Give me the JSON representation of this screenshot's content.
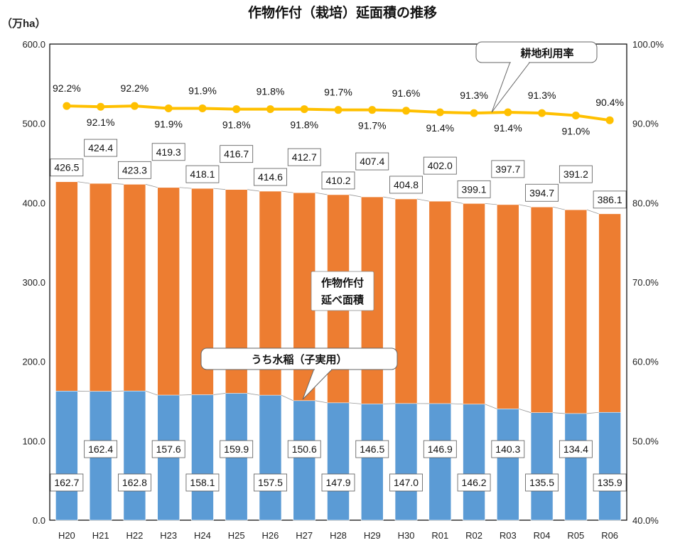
{
  "chart_data": {
    "type": "bar",
    "title": "作物作付（栽培）延面積の推移",
    "ylabel": "（万ha）",
    "ylim": [
      0,
      600
    ],
    "y2lim": [
      40,
      100
    ],
    "left_ticks": [
      "0.0",
      "100.0",
      "200.0",
      "300.0",
      "400.0",
      "500.0",
      "600.0"
    ],
    "right_ticks": [
      "40.0%",
      "50.0%",
      "60.0%",
      "70.0%",
      "80.0%",
      "90.0%",
      "100.0%"
    ],
    "categories": [
      "H20",
      "H21",
      "H22",
      "H23",
      "H24",
      "H25",
      "H26",
      "H27",
      "H28",
      "H29",
      "H30",
      "R01",
      "R02",
      "R03",
      "R04",
      "R05",
      "R06"
    ],
    "series": [
      {
        "name": "うち水稲（子実用）",
        "type": "bar",
        "color": "#5B9BD5",
        "values": [
          162.7,
          162.4,
          162.8,
          157.6,
          158.1,
          159.9,
          157.5,
          150.6,
          147.9,
          146.5,
          147.0,
          146.9,
          146.2,
          140.3,
          135.5,
          134.4,
          135.9
        ],
        "labels": [
          "162.7",
          "162.4",
          "162.8",
          "157.6",
          "158.1",
          "159.9",
          "157.5",
          "150.6",
          "147.9",
          "146.5",
          "147.0",
          "146.9",
          "146.2",
          "140.3",
          "135.5",
          "134.4",
          "135.9"
        ]
      },
      {
        "name": "作物作付 延べ面積",
        "type": "bar",
        "color": "#ED7D31",
        "values": [
          426.5,
          424.4,
          423.3,
          419.3,
          418.1,
          416.7,
          414.6,
          412.7,
          410.2,
          407.4,
          404.8,
          402.0,
          399.1,
          397.7,
          394.7,
          391.2,
          386.1
        ],
        "labels": [
          "426.5",
          "424.4",
          "423.3",
          "419.3",
          "418.1",
          "416.7",
          "414.6",
          "412.7",
          "410.2",
          "407.4",
          "404.8",
          "402.0",
          "399.1",
          "397.7",
          "394.7",
          "391.2",
          "386.1"
        ]
      },
      {
        "name": "耕地利用率",
        "type": "line",
        "axis": "right",
        "color": "#FFC000",
        "values": [
          92.2,
          92.1,
          92.2,
          91.9,
          91.9,
          91.8,
          91.8,
          91.8,
          91.7,
          91.7,
          91.6,
          91.4,
          91.3,
          91.4,
          91.3,
          91.0,
          90.4
        ],
        "labels": [
          "92.2%",
          "92.1%",
          "92.2%",
          "91.9%",
          "91.9%",
          "91.8%",
          "91.8%",
          "91.8%",
          "91.7%",
          "91.7%",
          "91.6%",
          "91.4%",
          "91.3%",
          "91.4%",
          "91.3%",
          "91.0%",
          "90.4%"
        ]
      }
    ],
    "callouts": {
      "total_line1": "作物作付",
      "total_line2": "延べ面積",
      "rice": "うち水稲（子実用）",
      "rate": "耕地利用率"
    },
    "grid": false,
    "legend": "none"
  }
}
